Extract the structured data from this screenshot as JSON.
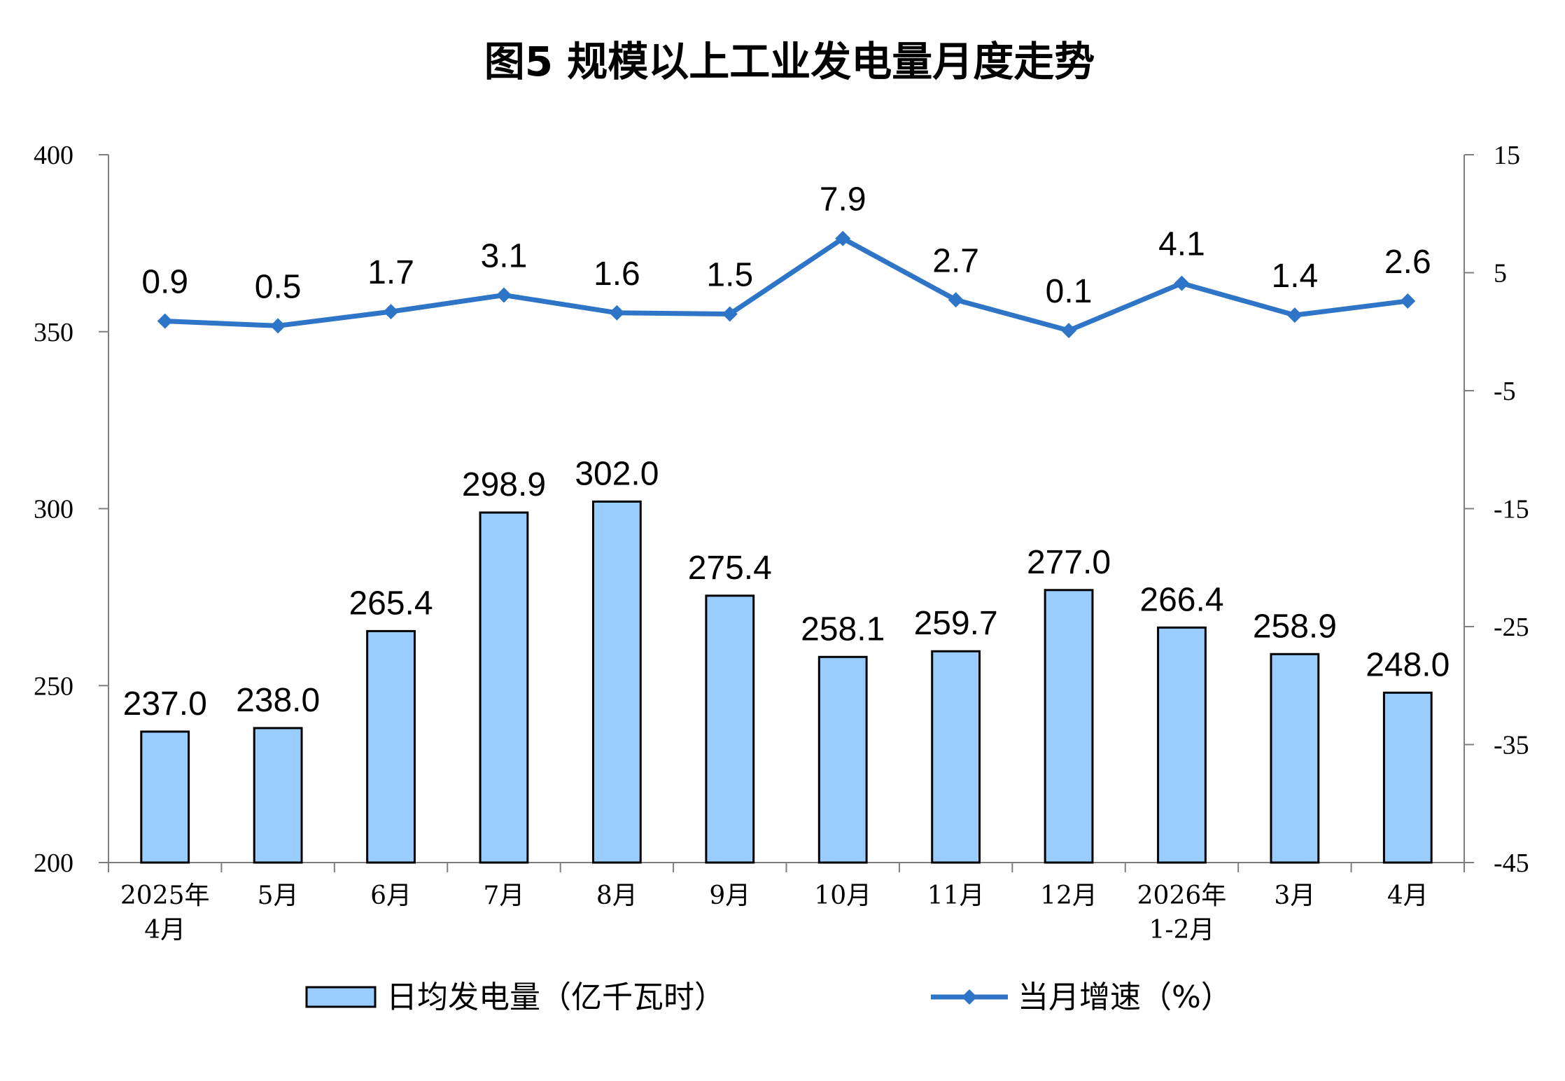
{
  "chart_data": {
    "type": "bar+line",
    "title": "图5  规模以上工业发电量月度走势",
    "categories": [
      [
        "2025年",
        "4月"
      ],
      [
        "5月"
      ],
      [
        "6月"
      ],
      [
        "7月"
      ],
      [
        "8月"
      ],
      [
        "9月"
      ],
      [
        "10月"
      ],
      [
        "11月"
      ],
      [
        "12月"
      ],
      [
        "2026年",
        "1-2月"
      ],
      [
        "3月"
      ],
      [
        "4月"
      ]
    ],
    "series": [
      {
        "name": "日均发电量（亿千瓦时）",
        "type": "bar",
        "axis": "left",
        "color": "#99CCFF",
        "values": [
          237.0,
          238.0,
          265.4,
          298.9,
          302.0,
          275.4,
          258.1,
          259.7,
          277.0,
          266.4,
          258.9,
          248.0
        ],
        "labels": [
          "237.0",
          "238.0",
          "265.4",
          "298.9",
          "302.0",
          "275.4",
          "258.1",
          "259.7",
          "277.0",
          "266.4",
          "258.9",
          "248.0"
        ]
      },
      {
        "name": "当月增速（%）",
        "type": "line",
        "axis": "right",
        "color": "#2E75C8",
        "values": [
          0.9,
          0.5,
          1.7,
          3.1,
          1.6,
          1.5,
          7.9,
          2.7,
          0.1,
          4.1,
          1.4,
          2.6
        ],
        "labels": [
          "0.9",
          "0.5",
          "1.7",
          "3.1",
          "1.6",
          "1.5",
          "7.9",
          "2.7",
          "0.1",
          "4.1",
          "1.4",
          "2.6"
        ]
      }
    ],
    "y_left": {
      "min": 200,
      "max": 400,
      "ticks": [
        200,
        250,
        300,
        350,
        400
      ],
      "tick_labels": [
        "200",
        "250",
        "300",
        "350",
        "400"
      ]
    },
    "y_right": {
      "min": -45,
      "max": 15,
      "ticks": [
        -45,
        -35,
        -25,
        -15,
        -5,
        5,
        15
      ],
      "tick_labels": [
        "-45",
        "-35",
        "-25",
        "-15",
        "-5",
        "5",
        "15"
      ]
    },
    "grid": false,
    "legend": "bottom"
  }
}
